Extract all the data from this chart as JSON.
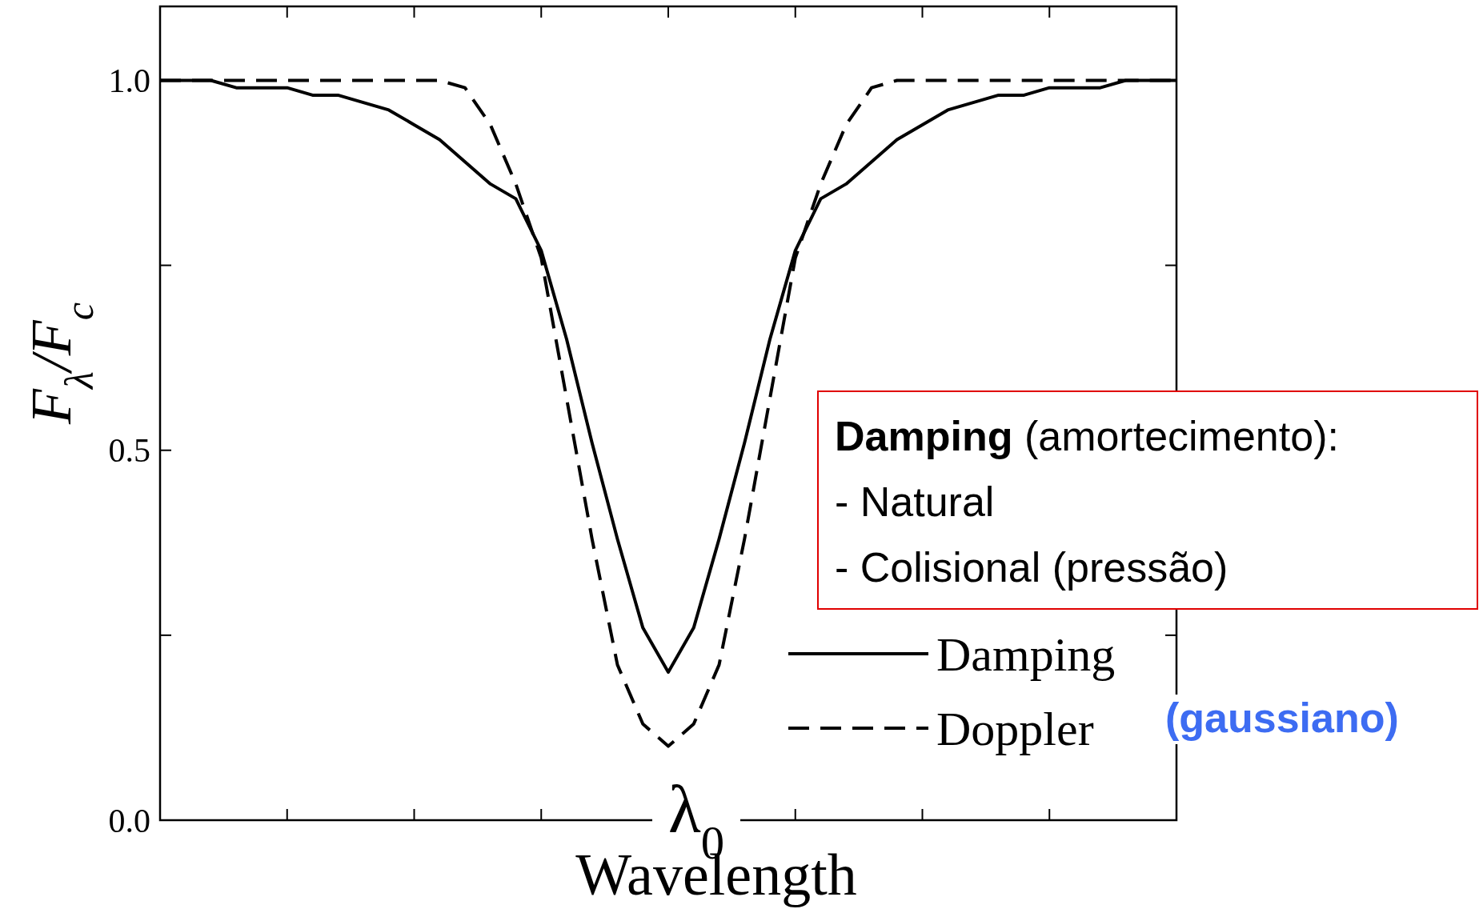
{
  "chart_data": {
    "type": "line",
    "xlabel": "Wavelength",
    "ylabel": "F$_{λ}$/F$_{c}$",
    "categories": [
      null,
      null,
      null,
      null,
      null,
      null,
      null,
      null,
      null,
      null,
      null,
      null,
      null,
      null,
      null,
      null,
      null,
      null,
      null,
      null,
      null,
      null,
      null,
      null,
      null,
      null,
      null,
      null,
      null,
      null,
      null,
      null,
      null,
      null,
      null,
      null,
      null,
      null,
      null,
      null,
      null
    ],
    "series": [
      {
        "name": "Damping",
        "color": "#000000",
        "line_style": "solid",
        "values": [
          1,
          1,
          1,
          0.99,
          0.99,
          0.99,
          0.98,
          0.98,
          0.97,
          0.96,
          0.94,
          0.92,
          0.89,
          0.86,
          0.84,
          0.77,
          0.65,
          0.51,
          0.38,
          0.26,
          0.2,
          0.26,
          0.38,
          0.51,
          0.65,
          0.77,
          0.84,
          0.86,
          0.89,
          0.92,
          0.94,
          0.96,
          0.97,
          0.98,
          0.98,
          0.99,
          0.99,
          0.99,
          1,
          1,
          1
        ]
      },
      {
        "name": "Doppler",
        "color": "#000000",
        "line_style": "dashed",
        "values": [
          1,
          1,
          1,
          1,
          1,
          1,
          1,
          1,
          1,
          1,
          1,
          1,
          0.99,
          0.94,
          0.86,
          0.76,
          0.57,
          0.38,
          0.21,
          0.13,
          0.1,
          0.13,
          0.21,
          0.38,
          0.57,
          0.76,
          0.86,
          0.94,
          0.99,
          1,
          1,
          1,
          1,
          1,
          1,
          1,
          1,
          1,
          1,
          1,
          1
        ]
      }
    ],
    "ylim": [
      0,
      1.1
    ],
    "yticks": [
      {
        "value": 0,
        "label": "0.0"
      },
      {
        "value": 0.25,
        "label": null
      },
      {
        "value": 0.5,
        "label": "0.5"
      },
      {
        "value": 0.75,
        "label": null
      },
      {
        "value": 1,
        "label": "1.0"
      }
    ],
    "legend": "bottom right",
    "annotations": [
      "Damping (amortecimento):",
      "- Natural",
      "- Colisional (pressão)",
      "(gaussiano)",
      "λ$_{0}$"
    ]
  }
}
